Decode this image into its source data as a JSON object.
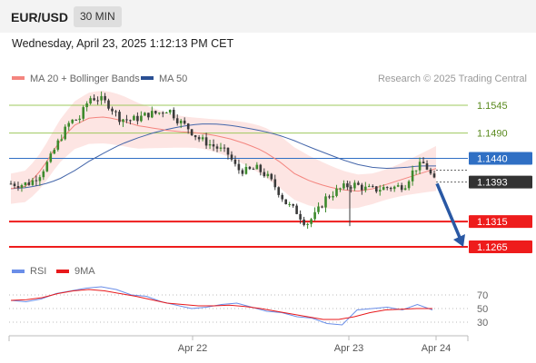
{
  "header": {
    "pair": "EUR/USD",
    "timeframe": "30 MIN"
  },
  "datetime": "Wednesday, April 23, 2025 1:12:13 PM CET",
  "legend": {
    "ma20_bb": "MA 20 + Bollinger Bands",
    "ma50": "MA 50",
    "rsi": "RSI",
    "ma9": "9MA"
  },
  "watermark": "Research © 2025 Trading Central",
  "colors": {
    "ma20": "#f4857f",
    "bollinger": "#fcdcda",
    "ma50": "#4466aa",
    "rsi": "#6a8ee8",
    "ma9": "#e8191b",
    "resistance": "#9ec85e",
    "pivot": "#2f6fc4",
    "support": "#ee1c1c",
    "arrow": "#2958a4",
    "bull": "#3d8a2c",
    "bear": "#3a3a3a"
  },
  "chart_data": [
    {
      "type": "candlestick",
      "title": "EUR/USD 30 MIN",
      "x_labels": [
        "Apr 22",
        "Apr 23",
        "Apr 24"
      ],
      "ylim": [
        1.124,
        1.162
      ],
      "current_price": 1.1393,
      "levels": [
        {
          "value": 1.1545,
          "label": "1.1545",
          "kind": "resistance"
        },
        {
          "value": 1.149,
          "label": "1.1490",
          "kind": "resistance"
        },
        {
          "value": 1.144,
          "label": "1.1440",
          "kind": "pivot"
        },
        {
          "value": 1.1393,
          "label": "1.1393",
          "kind": "last"
        },
        {
          "value": 1.1315,
          "label": "1.1315",
          "kind": "support"
        },
        {
          "value": 1.1265,
          "label": "1.1265",
          "kind": "support"
        }
      ],
      "forecast_arrow": {
        "from": 1.139,
        "to": 1.1265
      },
      "close_path": [
        1.139,
        1.1388,
        1.1392,
        1.141,
        1.144,
        1.148,
        1.1512,
        1.152,
        1.156,
        1.1558,
        1.1545,
        1.152,
        1.1515,
        1.152,
        1.1528,
        1.153,
        1.1538,
        1.1515,
        1.15,
        1.148,
        1.147,
        1.146,
        1.145,
        1.1418,
        1.1415,
        1.142,
        1.1405,
        1.138,
        1.135,
        1.1335,
        1.131,
        1.133,
        1.1362,
        1.1375,
        1.1385,
        1.1388,
        1.138,
        1.1378,
        1.1382,
        1.1383,
        1.1387,
        1.142,
        1.143,
        1.1395
      ],
      "ma20_path": [
        1.138,
        1.1385,
        1.142,
        1.147,
        1.1505,
        1.152,
        1.1522,
        1.1515,
        1.1505,
        1.15,
        1.1495,
        1.1492,
        1.149,
        1.1485,
        1.1478,
        1.1468,
        1.1455,
        1.1435,
        1.141,
        1.1395,
        1.1385,
        1.1378,
        1.1375,
        1.138,
        1.139,
        1.14,
        1.141,
        1.142
      ],
      "ma50_path": [
        1.138,
        1.1382,
        1.1388,
        1.1398,
        1.1415,
        1.1435,
        1.1452,
        1.1468,
        1.148,
        1.149,
        1.1498,
        1.1504,
        1.1508,
        1.1508,
        1.1505,
        1.15,
        1.1494,
        1.1486,
        1.1475,
        1.1462,
        1.145,
        1.1438,
        1.1428,
        1.1422,
        1.142,
        1.1422,
        1.1425,
        1.1425
      ]
    },
    {
      "type": "line",
      "title": "RSI",
      "yticks": [
        70,
        50,
        30
      ],
      "series": [
        {
          "name": "RSI",
          "values": [
            62,
            60,
            64,
            72,
            76,
            80,
            82,
            78,
            70,
            68,
            60,
            55,
            50,
            52,
            56,
            58,
            52,
            46,
            44,
            38,
            36,
            28,
            26,
            48,
            50,
            52,
            48,
            56,
            48
          ]
        },
        {
          "name": "9MA",
          "values": [
            62,
            63,
            66,
            72,
            76,
            78,
            76,
            72,
            68,
            63,
            58,
            56,
            54,
            54,
            55,
            53,
            50,
            46,
            42,
            38,
            34,
            34,
            38,
            44,
            48,
            49,
            50,
            50
          ]
        }
      ]
    }
  ]
}
